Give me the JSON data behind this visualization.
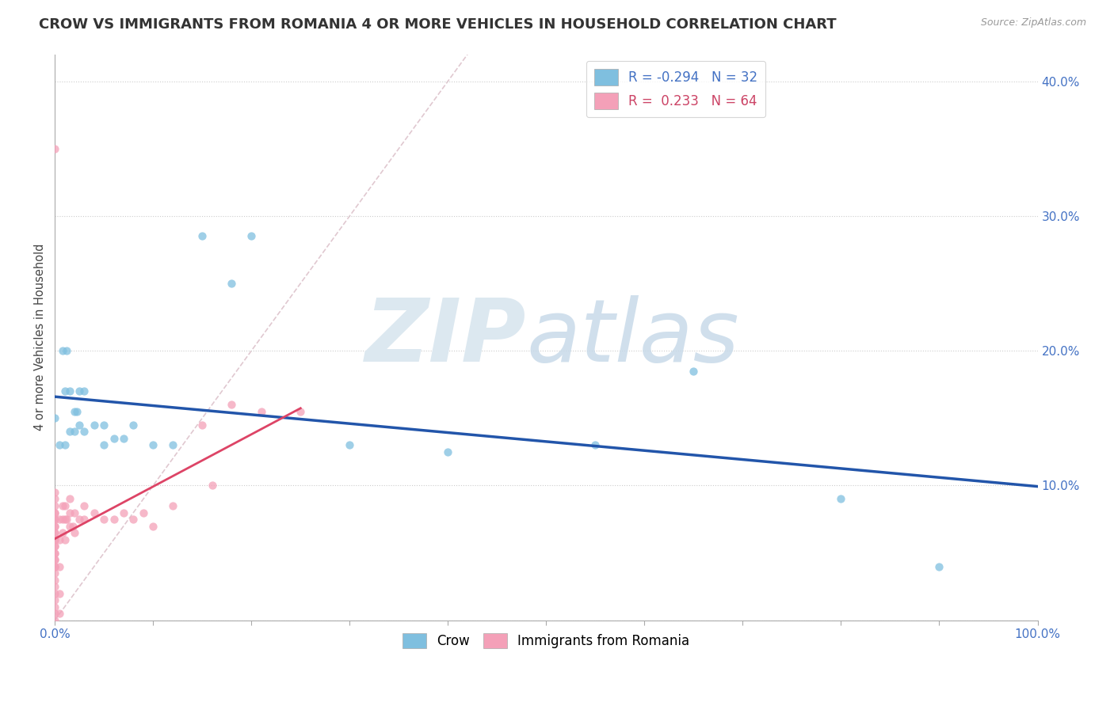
{
  "title": "CROW VS IMMIGRANTS FROM ROMANIA 4 OR MORE VEHICLES IN HOUSEHOLD CORRELATION CHART",
  "source": "Source: ZipAtlas.com",
  "ylabel": "4 or more Vehicles in Household",
  "xlim": [
    0.0,
    1.0
  ],
  "ylim": [
    0.0,
    0.42
  ],
  "crow_color": "#7fbfdf",
  "romania_color": "#f4a0b8",
  "crow_line_color": "#2255aa",
  "romania_line_color": "#dd4466",
  "diagonal_color": "#e0c8d0",
  "crow_R": -0.294,
  "crow_N": 32,
  "romania_R": 0.233,
  "romania_N": 64,
  "crow_points_x": [
    0.0,
    0.005,
    0.008,
    0.01,
    0.01,
    0.012,
    0.015,
    0.015,
    0.02,
    0.02,
    0.022,
    0.025,
    0.025,
    0.03,
    0.03,
    0.04,
    0.05,
    0.05,
    0.06,
    0.07,
    0.08,
    0.1,
    0.12,
    0.15,
    0.18,
    0.2,
    0.3,
    0.4,
    0.55,
    0.65,
    0.8,
    0.9
  ],
  "crow_points_y": [
    0.15,
    0.13,
    0.2,
    0.13,
    0.17,
    0.2,
    0.14,
    0.17,
    0.14,
    0.155,
    0.155,
    0.145,
    0.17,
    0.14,
    0.17,
    0.145,
    0.13,
    0.145,
    0.135,
    0.135,
    0.145,
    0.13,
    0.13,
    0.285,
    0.25,
    0.285,
    0.13,
    0.125,
    0.13,
    0.185,
    0.09,
    0.04
  ],
  "romania_points_x": [
    0.0,
    0.0,
    0.0,
    0.0,
    0.0,
    0.0,
    0.0,
    0.0,
    0.0,
    0.0,
    0.0,
    0.0,
    0.0,
    0.0,
    0.0,
    0.0,
    0.0,
    0.0,
    0.0,
    0.0,
    0.0,
    0.0,
    0.0,
    0.0,
    0.0,
    0.0,
    0.0,
    0.0,
    0.0,
    0.0,
    0.005,
    0.005,
    0.005,
    0.005,
    0.005,
    0.008,
    0.008,
    0.008,
    0.01,
    0.01,
    0.01,
    0.012,
    0.015,
    0.015,
    0.015,
    0.018,
    0.02,
    0.02,
    0.025,
    0.03,
    0.03,
    0.04,
    0.05,
    0.06,
    0.07,
    0.08,
    0.09,
    0.1,
    0.12,
    0.15,
    0.16,
    0.18,
    0.21,
    0.25
  ],
  "romania_points_y": [
    0.0,
    0.005,
    0.01,
    0.015,
    0.02,
    0.025,
    0.03,
    0.035,
    0.04,
    0.045,
    0.05,
    0.055,
    0.06,
    0.065,
    0.07,
    0.075,
    0.08,
    0.085,
    0.09,
    0.095,
    0.04,
    0.045,
    0.05,
    0.055,
    0.06,
    0.065,
    0.07,
    0.075,
    0.08,
    0.35,
    0.005,
    0.02,
    0.04,
    0.06,
    0.075,
    0.065,
    0.075,
    0.085,
    0.06,
    0.075,
    0.085,
    0.075,
    0.07,
    0.08,
    0.09,
    0.07,
    0.065,
    0.08,
    0.075,
    0.075,
    0.085,
    0.08,
    0.075,
    0.075,
    0.08,
    0.075,
    0.08,
    0.07,
    0.085,
    0.145,
    0.1,
    0.16,
    0.155,
    0.155
  ]
}
